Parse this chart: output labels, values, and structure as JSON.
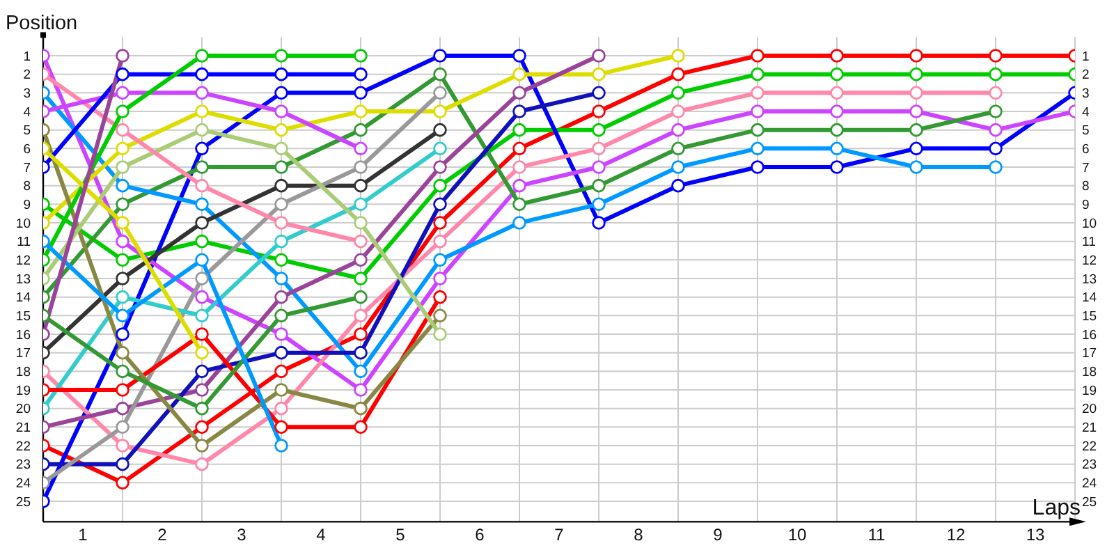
{
  "chart_data": {
    "type": "line",
    "xlabel": "Laps",
    "ylabel": "Position",
    "x": [
      0,
      1,
      2,
      3,
      4,
      5,
      6,
      7,
      8,
      9,
      10,
      11,
      12,
      13
    ],
    "xlim": [
      0,
      13
    ],
    "xticks": [
      {
        "value": 0,
        "label": null
      },
      {
        "value": 0.5,
        "label": "1"
      },
      {
        "value": 1,
        "label": null
      },
      {
        "value": 1.5,
        "label": "2"
      },
      {
        "value": 2,
        "label": null
      },
      {
        "value": 2.5,
        "label": "3"
      },
      {
        "value": 3,
        "label": null
      },
      {
        "value": 3.5,
        "label": "4"
      },
      {
        "value": 4,
        "label": null
      },
      {
        "value": 4.5,
        "label": "5"
      },
      {
        "value": 5,
        "label": null
      },
      {
        "value": 5.5,
        "label": "6"
      },
      {
        "value": 6,
        "label": null
      },
      {
        "value": 6.5,
        "label": "7"
      },
      {
        "value": 7,
        "label": null
      },
      {
        "value": 7.5,
        "label": "8"
      },
      {
        "value": 8,
        "label": null
      },
      {
        "value": 8.5,
        "label": "9"
      },
      {
        "value": 9,
        "label": null
      },
      {
        "value": 9.5,
        "label": "10"
      },
      {
        "value": 10,
        "label": null
      },
      {
        "value": 10.5,
        "label": "11"
      },
      {
        "value": 11,
        "label": null
      },
      {
        "value": 11.5,
        "label": "12"
      },
      {
        "value": 12,
        "label": null
      },
      {
        "value": 12.5,
        "label": "13"
      },
      {
        "value": 13,
        "label": null
      }
    ],
    "ylim": [
      26.1,
      0
    ],
    "yticks": [
      1,
      2,
      3,
      4,
      5,
      6,
      7,
      8,
      9,
      10,
      11,
      12,
      13,
      14,
      15,
      16,
      17,
      18,
      19,
      20,
      21,
      22,
      23,
      24,
      25
    ],
    "y2lim": [
      26.1,
      0
    ],
    "y2ticks": [
      1,
      2,
      3,
      4,
      5,
      6,
      7,
      8,
      9,
      10,
      11,
      12,
      13,
      14,
      15,
      16,
      17,
      18,
      19,
      20,
      21,
      22,
      23,
      24,
      25
    ],
    "grid": true,
    "marker": "circle",
    "line_style": "solid",
    "series": [
      {
        "color": "#ff0000",
        "values": [
          22,
          24,
          21,
          18,
          16,
          10,
          6,
          4,
          2,
          1,
          1,
          1,
          1,
          1
        ]
      },
      {
        "color": "#00cc00",
        "values": [
          9,
          12,
          11,
          12,
          13,
          8,
          5,
          5,
          3,
          2,
          2,
          2,
          2,
          2
        ]
      },
      {
        "color": "#0000ff",
        "values": [
          25,
          16,
          6,
          3,
          3,
          1,
          1,
          10,
          8,
          7,
          7,
          6,
          6,
          3
        ]
      },
      {
        "color": "#cc44ff",
        "values": [
          1,
          11,
          14,
          16,
          19,
          13,
          8,
          7,
          5,
          4,
          4,
          4,
          5,
          4
        ]
      },
      {
        "color": "#ff88aa",
        "values": [
          18,
          22,
          23,
          20,
          15,
          11,
          7,
          6,
          4,
          3,
          3,
          3,
          3,
          null
        ]
      },
      {
        "color": "#339933",
        "values": [
          14,
          9,
          7,
          7,
          5,
          2,
          9,
          8,
          6,
          5,
          5,
          5,
          4,
          null
        ]
      },
      {
        "color": "#0099ff",
        "values": [
          3,
          8,
          9,
          13,
          18,
          12,
          10,
          9,
          7,
          6,
          6,
          7,
          7,
          null
        ]
      },
      {
        "color": "#dddd00",
        "values": [
          10,
          6,
          4,
          5,
          4,
          4,
          2,
          2,
          1,
          null,
          null,
          null,
          null,
          null
        ]
      },
      {
        "color": "#994499",
        "values": [
          21,
          20,
          19,
          14,
          12,
          7,
          3,
          1,
          null,
          null,
          null,
          null,
          null,
          null
        ]
      },
      {
        "color": "#1111bb",
        "values": [
          23,
          23,
          18,
          17,
          17,
          9,
          4,
          3,
          null,
          null,
          null,
          null,
          null,
          null
        ]
      },
      {
        "color": "#333333",
        "values": [
          17,
          13,
          10,
          8,
          8,
          5,
          null,
          null,
          null,
          null,
          null,
          null,
          null,
          null
        ]
      },
      {
        "color": "#999999",
        "values": [
          24,
          21,
          13,
          9,
          7,
          3,
          null,
          null,
          null,
          null,
          null,
          null,
          null,
          null
        ]
      },
      {
        "color": "#33cccc",
        "values": [
          20,
          14,
          15,
          11,
          9,
          6,
          null,
          null,
          null,
          null,
          null,
          null,
          null,
          null
        ]
      },
      {
        "color": "#ff0000",
        "values": [
          19,
          19,
          16,
          21,
          21,
          14,
          null,
          null,
          null,
          null,
          null,
          null,
          null,
          null
        ]
      },
      {
        "color": "#888844",
        "values": [
          5,
          17,
          22,
          19,
          20,
          15,
          null,
          null,
          null,
          null,
          null,
          null,
          null,
          null
        ]
      },
      {
        "color": "#aacc77",
        "values": [
          13,
          7,
          5,
          6,
          10,
          16,
          null,
          null,
          null,
          null,
          null,
          null,
          null,
          null
        ]
      },
      {
        "color": "#ff88aa",
        "values": [
          2,
          5,
          8,
          10,
          11,
          null,
          null,
          null,
          null,
          null,
          null,
          null,
          null,
          null
        ]
      },
      {
        "color": "#cc44ff",
        "values": [
          4,
          3,
          3,
          4,
          6,
          null,
          null,
          null,
          null,
          null,
          null,
          null,
          null,
          null
        ]
      },
      {
        "color": "#0000ff",
        "values": [
          7,
          2,
          2,
          2,
          2,
          null,
          null,
          null,
          null,
          null,
          null,
          null,
          null,
          null
        ]
      },
      {
        "color": "#00cc00",
        "values": [
          12,
          4,
          1,
          1,
          1,
          null,
          null,
          null,
          null,
          null,
          null,
          null,
          null,
          null
        ]
      },
      {
        "color": "#339933",
        "values": [
          15,
          18,
          20,
          15,
          14,
          null,
          null,
          null,
          null,
          null,
          null,
          null,
          null,
          null
        ]
      },
      {
        "color": "#0099ff",
        "values": [
          11,
          15,
          12,
          22,
          null,
          null,
          null,
          null,
          null,
          null,
          null,
          null,
          null,
          null
        ]
      },
      {
        "color": "#dddd00",
        "values": [
          6,
          10,
          17,
          null,
          null,
          null,
          null,
          null,
          null,
          null,
          null,
          null,
          null,
          null
        ]
      },
      {
        "color": "#994499",
        "values": [
          16,
          1,
          null,
          null,
          null,
          null,
          null,
          null,
          null,
          null,
          null,
          null,
          null,
          null
        ]
      }
    ]
  }
}
